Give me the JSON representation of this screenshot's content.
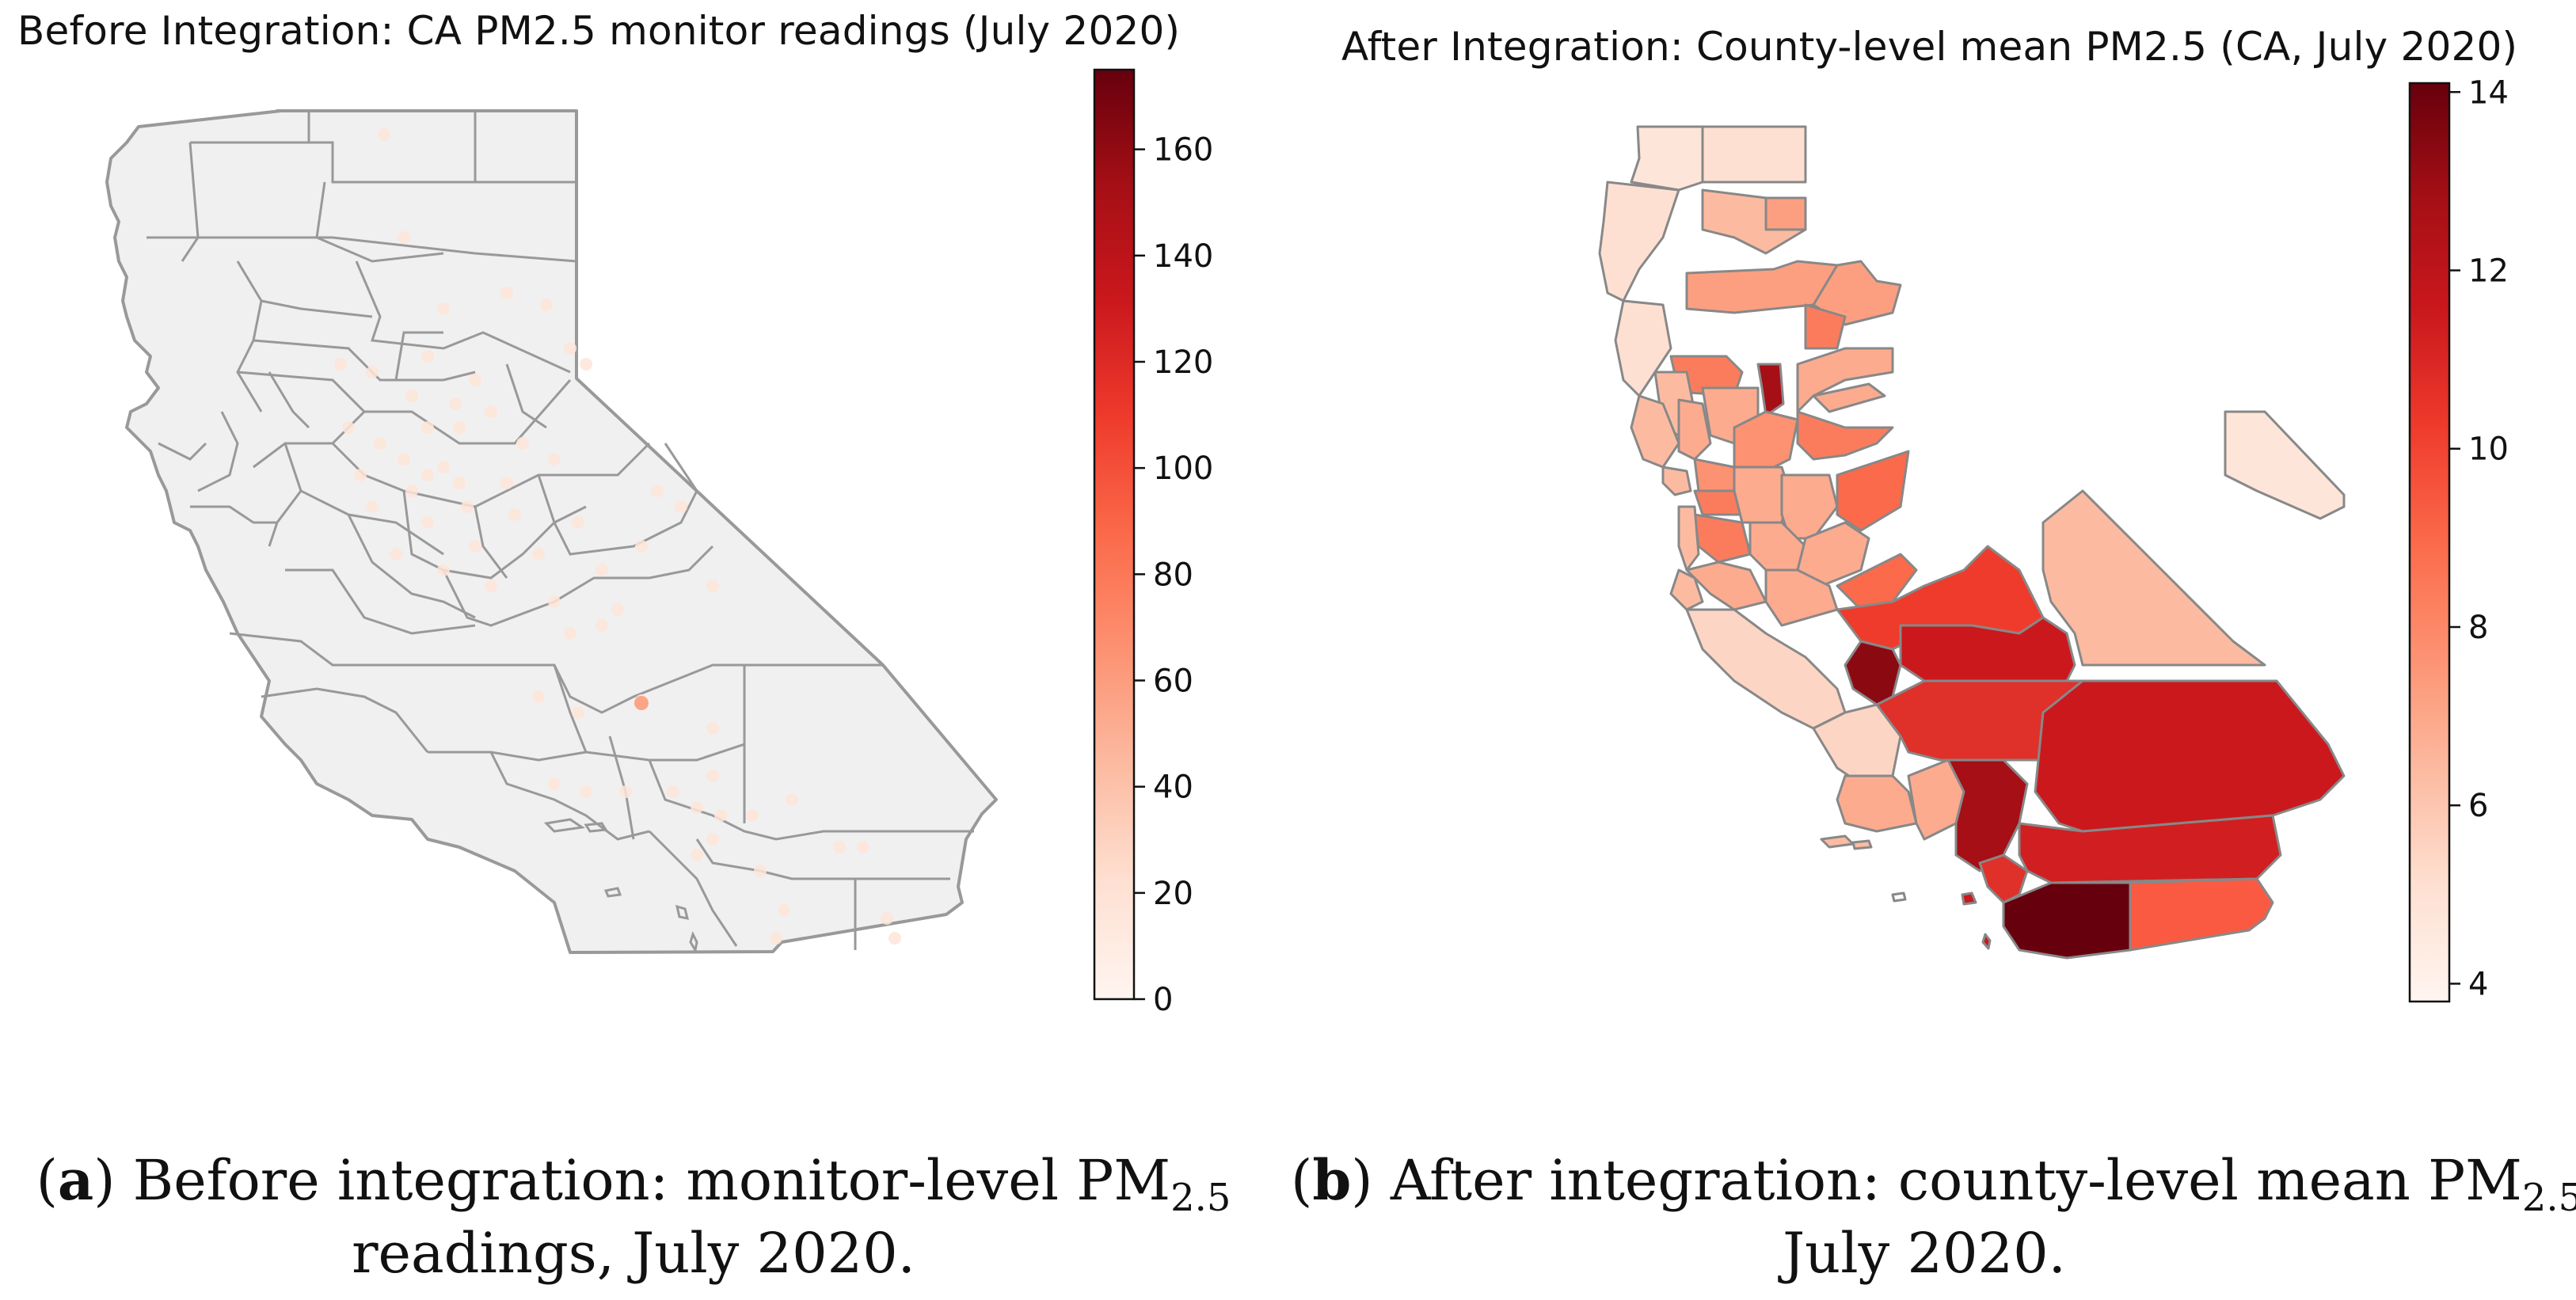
{
  "panel_a": {
    "title": "Before Integration: CA PM2.5 monitor readings (July 2020)",
    "caption": {
      "letter": "a",
      "line1_pre": ") Before integration: monitor-level PM",
      "subscript": "2.5",
      "line2": "readings, July 2020."
    },
    "colorbar": {
      "min": 0,
      "max": 175,
      "ticks": [
        "0",
        "20",
        "40",
        "60",
        "80",
        "100",
        "120",
        "140",
        "160"
      ]
    },
    "fill_color": "#f0f0f0",
    "border_color": "#999999"
  },
  "panel_b": {
    "title": "After Integration: County-level mean PM2.5 (CA, July 2020)",
    "caption": {
      "letter": "b",
      "line1_pre": ") After integration: county-level mean PM",
      "subscript": "2.5",
      "line1_post": ",",
      "line2": "July 2020."
    },
    "colorbar": {
      "min": 3.8,
      "max": 14.1,
      "ticks": [
        "4",
        "6",
        "8",
        "10",
        "12",
        "14"
      ]
    },
    "border_color": "#888888"
  },
  "colormap": "Reds",
  "colormap_stops": [
    "#fff5f0",
    "#fee0d2",
    "#fcbba1",
    "#fc9272",
    "#fb6a4a",
    "#ef3b2c",
    "#cb181d",
    "#a50f15",
    "#67000d"
  ]
}
